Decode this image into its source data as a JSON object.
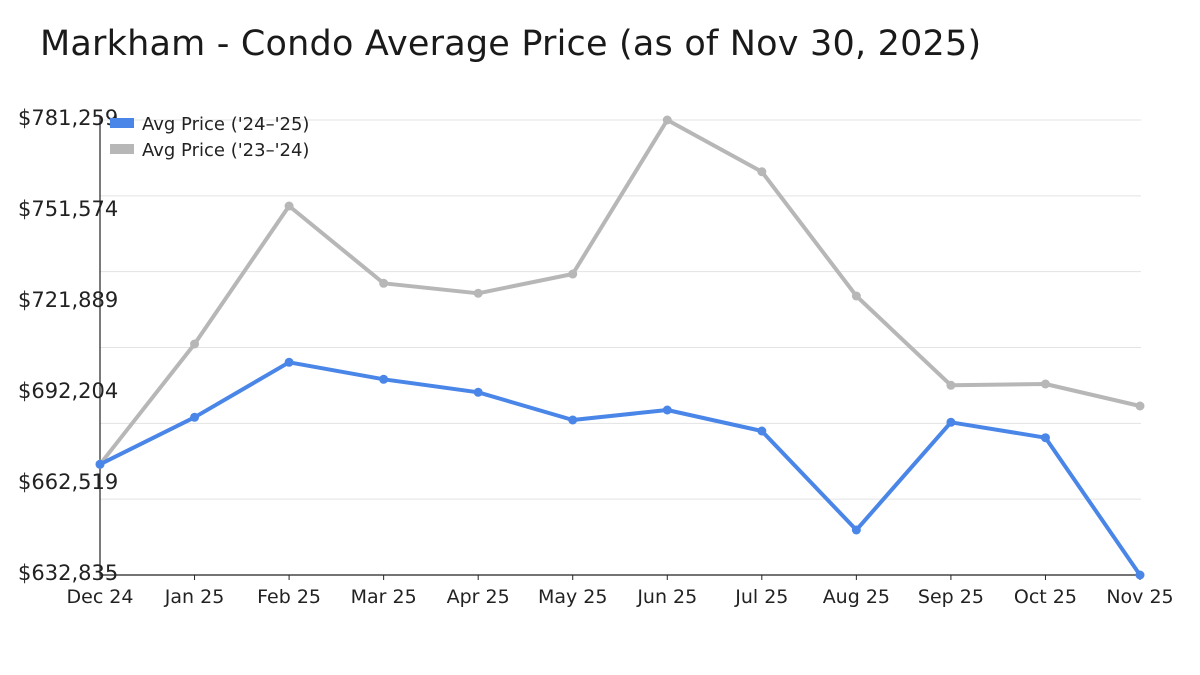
{
  "chart_data": {
    "type": "line",
    "title": "Markham - Condo Average Price (as of Nov 30, 2025)",
    "xlabel": "",
    "ylabel": "",
    "categories": [
      "Dec 24",
      "Jan 25",
      "Feb 25",
      "Mar 25",
      "Apr 25",
      "May 25",
      "Jun 25",
      "Jul 25",
      "Aug 25",
      "Sep 25",
      "Oct 25",
      "Nov 25"
    ],
    "ylim": [
      632835,
      781259
    ],
    "yticks": [
      632835,
      662519,
      692204,
      721889,
      751574,
      781259
    ],
    "ytick_labels": [
      "$632,835",
      "$662,519",
      "$692,204",
      "$721,889",
      "$751,574",
      "$781,259"
    ],
    "grid": true,
    "legend_position": "top-left",
    "series": [
      {
        "name": "Avg Price ('24–'25)",
        "color": "#4a86e8",
        "values": [
          668946,
          684277,
          702218,
          696672,
          692432,
          683396,
          686658,
          679808,
          647514,
          682646,
          677622,
          632835
        ]
      },
      {
        "name": "Avg Price ('23–'24)",
        "color": "#b7b7b7",
        "values": [
          668946,
          708187,
          753203,
          727988,
          724726,
          731021,
          781259,
          764392,
          723845,
          694715,
          695139,
          687963
        ]
      }
    ]
  }
}
